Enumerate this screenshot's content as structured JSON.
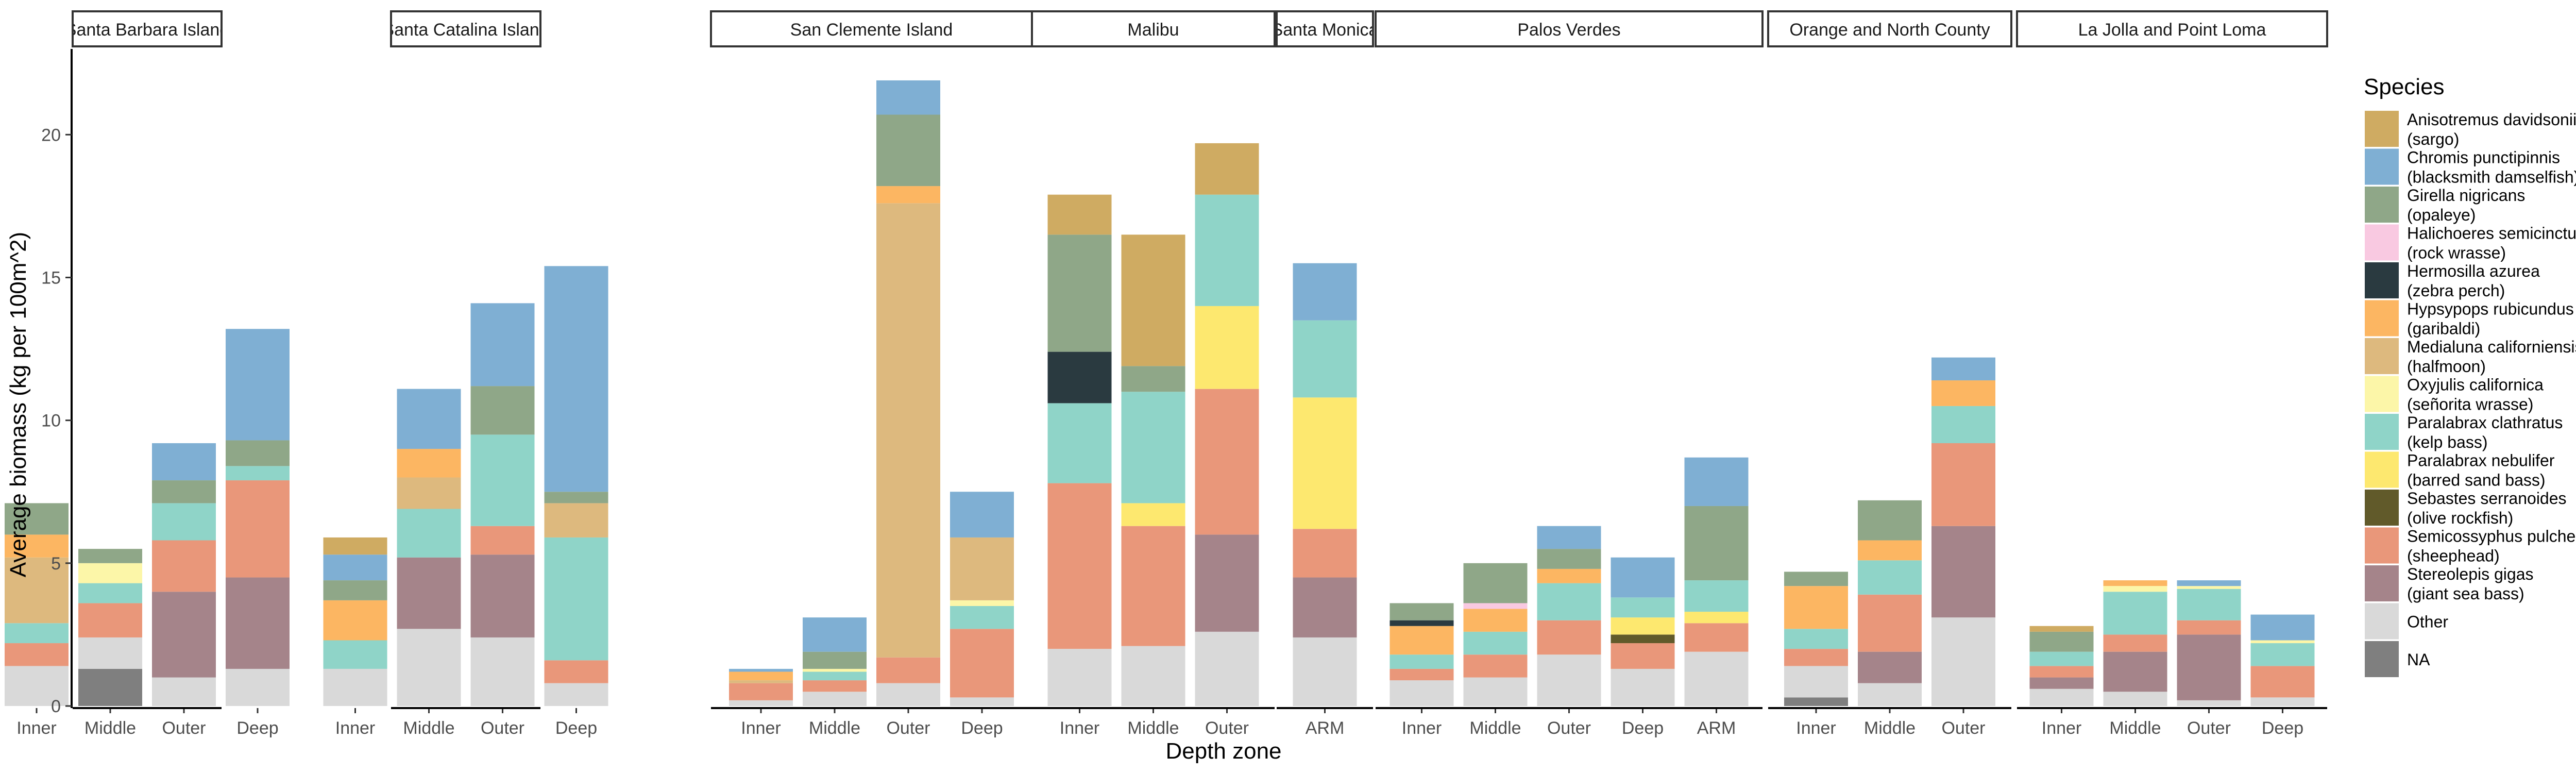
{
  "chart_data": {
    "type": "bar",
    "stacked": true,
    "xlabel": "Depth zone",
    "ylabel": "Average biomass (kg per 100m^2)",
    "ylim": [
      0,
      23
    ],
    "yticks": [
      0,
      5,
      10,
      15,
      20
    ],
    "grid": false,
    "legend_position": "right",
    "legend": {
      "title": "Species",
      "entries": [
        {
          "key": "Anisotremus",
          "line1": "Anisotremus davidsonii",
          "line2": "(sargo)",
          "color": "#CFAB62"
        },
        {
          "key": "Chromis",
          "line1": "Chromis punctipinnis",
          "line2": "(blacksmith damselfish)",
          "color": "#7FAFD3"
        },
        {
          "key": "Girella",
          "line1": "Girella nigricans",
          "line2": "(opaleye)",
          "color": "#8FA788"
        },
        {
          "key": "Halichoeres",
          "line1": "Halichoeres semicinctus",
          "line2": "(rock wrasse)",
          "color": "#F9C9E1"
        },
        {
          "key": "Hermosilla",
          "line1": "Hermosilla azurea",
          "line2": "(zebra perch)",
          "color": "#2A3A40"
        },
        {
          "key": "Hypsypops",
          "line1": "Hypsypops rubicundus",
          "line2": "(garibaldi)",
          "color": "#FCB662"
        },
        {
          "key": "Medialuna",
          "line1": "Medialuna californiensis",
          "line2": "(halfmoon)",
          "color": "#DDB97E"
        },
        {
          "key": "Oxyjulis",
          "line1": "Oxyjulis californica",
          "line2": "(señorita wrasse)",
          "color": "#FCF6A8"
        },
        {
          "key": "Paralabrax_clathratus",
          "line1": "Paralabrax clathratus",
          "line2": "(kelp bass)",
          "color": "#8FD4C8"
        },
        {
          "key": "Paralabrax_nebulifer",
          "line1": "Paralabrax nebulifer",
          "line2": "(barred sand bass)",
          "color": "#FDE86F"
        },
        {
          "key": "Sebastes",
          "line1": "Sebastes serranoides",
          "line2": "(olive rockfish)",
          "color": "#615A2A"
        },
        {
          "key": "Semicossyphus",
          "line1": "Semicossyphus pulcher",
          "line2": "(sheephead)",
          "color": "#E9977A"
        },
        {
          "key": "Stereolepis",
          "line1": "Stereolepis gigas",
          "line2": "(giant sea bass)",
          "color": "#A5848A"
        },
        {
          "key": "Other",
          "line1": "Other",
          "line2": "",
          "color": "#D9D9D9"
        },
        {
          "key": "NA",
          "line1": "NA",
          "line2": "",
          "color": "#7F7F7F"
        }
      ]
    },
    "panels": [
      {
        "name": "Santa Barbara Island",
        "bars": [
          {
            "zone": "Inner",
            "segments": {
              "Other": 1.4,
              "Semicossyphus": 0.8,
              "Paralabrax_clathratus": 0.7,
              "Medialuna": 2.3,
              "Hypsypops": 0.8,
              "Girella": 1.1
            }
          },
          {
            "zone": "Middle",
            "segments": {
              "NA": 1.3,
              "Other": 1.1,
              "Semicossyphus": 1.2,
              "Paralabrax_clathratus": 0.7,
              "Oxyjulis": 0.7,
              "Girella": 0.5
            }
          },
          {
            "zone": "Outer",
            "segments": {
              "Other": 1.0,
              "Stereolepis": 3.0,
              "Semicossyphus": 1.8,
              "Paralabrax_clathratus": 1.3,
              "Girella": 0.8,
              "Chromis": 1.3
            }
          },
          {
            "zone": "Deep",
            "segments": {
              "Other": 1.3,
              "Stereolepis": 3.2,
              "Semicossyphus": 3.4,
              "Paralabrax_clathratus": 0.5,
              "Girella": 0.9,
              "Chromis": 3.9
            }
          }
        ]
      },
      {
        "name": "Santa Catalina Island",
        "bars": [
          {
            "zone": "Inner",
            "segments": {
              "Other": 1.3,
              "Paralabrax_clathratus": 1.0,
              "Hypsypops": 1.4,
              "Girella": 0.7,
              "Chromis": 0.9,
              "Anisotremus": 0.6
            }
          },
          {
            "zone": "Middle",
            "segments": {
              "Other": 2.7,
              "Stereolepis": 2.5,
              "Paralabrax_clathratus": 1.7,
              "Medialuna": 1.1,
              "Hypsypops": 1.0,
              "Chromis": 2.1
            }
          },
          {
            "zone": "Outer",
            "segments": {
              "Other": 2.4,
              "Stereolepis": 2.9,
              "Semicossyphus": 1.0,
              "Paralabrax_clathratus": 3.2,
              "Girella": 1.7,
              "Chromis": 2.9
            }
          },
          {
            "zone": "Deep",
            "segments": {
              "Other": 0.8,
              "Semicossyphus": 0.8,
              "Paralabrax_clathratus": 4.3,
              "Medialuna": 1.2,
              "Girella": 0.4,
              "Chromis": 7.9
            }
          }
        ]
      },
      {
        "name": "San Clemente Island",
        "bars": [
          {
            "zone": "Inner",
            "segments": {
              "Other": 0.2,
              "Semicossyphus": 0.6,
              "Hypsypops": 0.3,
              "Medialuna": 0.1,
              "Chromis": 0.1
            }
          },
          {
            "zone": "Middle",
            "segments": {
              "Other": 0.5,
              "Semicossyphus": 0.4,
              "Paralabrax_clathratus": 0.3,
              "Oxyjulis": 0.1,
              "Girella": 0.6,
              "Chromis": 1.2
            }
          },
          {
            "zone": "Outer",
            "segments": {
              "Other": 0.8,
              "Semicossyphus": 0.9,
              "Medialuna": 15.9,
              "Hypsypops": 0.6,
              "Girella": 2.5,
              "Chromis": 1.2
            }
          },
          {
            "zone": "Deep",
            "segments": {
              "Other": 0.3,
              "Semicossyphus": 2.4,
              "Paralabrax_clathratus": 0.8,
              "Oxyjulis": 0.2,
              "Medialuna": 2.2,
              "Chromis": 1.6
            }
          }
        ]
      },
      {
        "name": "Malibu",
        "bars": [
          {
            "zone": "Inner",
            "segments": {
              "Other": 2.0,
              "Semicossyphus": 5.8,
              "Paralabrax_clathratus": 2.8,
              "Hermosilla": 1.8,
              "Girella": 4.1,
              "Anisotremus": 1.4
            }
          },
          {
            "zone": "Middle",
            "segments": {
              "Other": 2.1,
              "Semicossyphus": 4.2,
              "Paralabrax_nebulifer": 0.8,
              "Paralabrax_clathratus": 3.9,
              "Girella": 0.9,
              "Anisotremus": 4.6
            }
          },
          {
            "zone": "Outer",
            "segments": {
              "Other": 2.6,
              "Stereolepis": 3.4,
              "Semicossyphus": 5.1,
              "Paralabrax_nebulifer": 2.9,
              "Paralabrax_clathratus": 3.9,
              "Anisotremus": 1.8
            }
          }
        ]
      },
      {
        "name": "Santa Monica",
        "bars": [
          {
            "zone": "ARM",
            "segments": {
              "Other": 2.4,
              "Stereolepis": 2.1,
              "Semicossyphus": 1.7,
              "Paralabrax_nebulifer": 4.6,
              "Paralabrax_clathratus": 2.7,
              "Chromis": 2.0
            }
          }
        ]
      },
      {
        "name": "Palos Verdes",
        "bars": [
          {
            "zone": "Inner",
            "segments": {
              "Other": 0.9,
              "Semicossyphus": 0.4,
              "Paralabrax_clathratus": 0.5,
              "Hypsypops": 1.0,
              "Hermosilla": 0.2,
              "Girella": 0.6
            }
          },
          {
            "zone": "Middle",
            "segments": {
              "Other": 1.0,
              "Semicossyphus": 0.8,
              "Paralabrax_clathratus": 0.8,
              "Hypsypops": 0.8,
              "Halichoeres": 0.2,
              "Girella": 1.4
            }
          },
          {
            "zone": "Outer",
            "segments": {
              "Other": 1.8,
              "Semicossyphus": 1.2,
              "Paralabrax_clathratus": 1.3,
              "Hypsypops": 0.5,
              "Girella": 0.7,
              "Chromis": 0.8
            }
          },
          {
            "zone": "Deep",
            "segments": {
              "Other": 1.3,
              "Semicossyphus": 0.9,
              "Sebastes": 0.3,
              "Paralabrax_nebulifer": 0.6,
              "Paralabrax_clathratus": 0.7,
              "Chromis": 1.4
            }
          },
          {
            "zone": "ARM",
            "segments": {
              "Other": 1.9,
              "Semicossyphus": 1.0,
              "Paralabrax_nebulifer": 0.4,
              "Paralabrax_clathratus": 1.1,
              "Girella": 2.6,
              "Chromis": 1.7
            }
          }
        ]
      },
      {
        "name": "Orange and North County",
        "bars": [
          {
            "zone": "Inner",
            "segments": {
              "NA": 0.3,
              "Other": 1.1,
              "Semicossyphus": 0.6,
              "Paralabrax_clathratus": 0.7,
              "Hypsypops": 1.5,
              "Girella": 0.5
            }
          },
          {
            "zone": "Middle",
            "segments": {
              "Other": 0.8,
              "Stereolepis": 1.1,
              "Semicossyphus": 2.0,
              "Paralabrax_clathratus": 1.2,
              "Hypsypops": 0.7,
              "Girella": 1.4
            }
          },
          {
            "zone": "Outer",
            "segments": {
              "Other": 3.1,
              "Stereolepis": 3.2,
              "Semicossyphus": 2.9,
              "Paralabrax_clathratus": 1.3,
              "Hypsypops": 0.9,
              "Chromis": 0.8
            }
          }
        ]
      },
      {
        "name": "La Jolla and Point Loma",
        "bars": [
          {
            "zone": "Inner",
            "segments": {
              "Other": 0.6,
              "Stereolepis": 0.4,
              "Semicossyphus": 0.4,
              "Paralabrax_clathratus": 0.5,
              "Girella": 0.7,
              "Anisotremus": 0.2
            }
          },
          {
            "zone": "Middle",
            "segments": {
              "Other": 0.5,
              "Stereolepis": 1.4,
              "Semicossyphus": 0.6,
              "Paralabrax_clathratus": 1.5,
              "Oxyjulis": 0.2,
              "Hypsypops": 0.2
            }
          },
          {
            "zone": "Outer",
            "segments": {
              "Other": 0.2,
              "Stereolepis": 2.3,
              "Semicossyphus": 0.5,
              "Paralabrax_clathratus": 1.1,
              "Oxyjulis": 0.1,
              "Chromis": 0.2
            }
          },
          {
            "zone": "Deep",
            "segments": {
              "Other": 0.3,
              "Semicossyphus": 1.1,
              "Oxyjulis": 0.1,
              "Paralabrax_clathratus": 0.8,
              "Chromis": 0.9
            }
          }
        ]
      }
    ]
  }
}
